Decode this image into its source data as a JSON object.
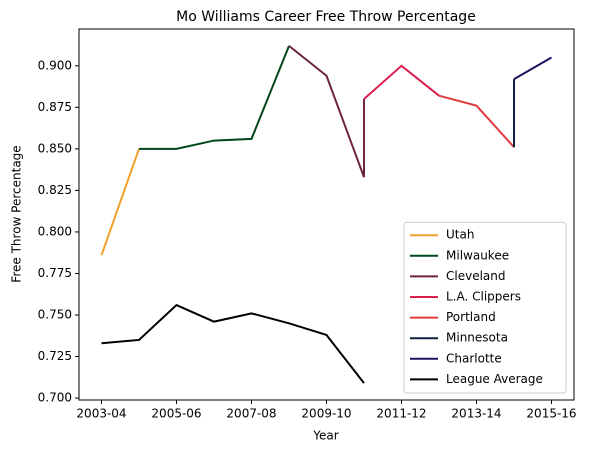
{
  "chart_data": {
    "type": "line",
    "title": "Mo Williams Career Free Throw Percentage",
    "xlabel": "Year",
    "ylabel": "Free Throw Percentage",
    "series": [
      {
        "name": "Utah",
        "color": "#f0a12e",
        "x": [
          2003,
          2004
        ],
        "values": [
          0.786,
          0.85
        ]
      },
      {
        "name": "Milwaukee",
        "color": "#00471b",
        "x": [
          2004,
          2005,
          2006,
          2007,
          2008
        ],
        "values": [
          0.85,
          0.85,
          0.855,
          0.856,
          0.912
        ]
      },
      {
        "name": "Cleveland",
        "color": "#6f263d",
        "x": [
          2008,
          2009,
          2010,
          2010
        ],
        "values": [
          0.912,
          0.894,
          0.833,
          0.88
        ]
      },
      {
        "name": "L.A. Clippers",
        "color": "#dc1f4f",
        "x": [
          2010,
          2011,
          2012
        ],
        "values": [
          0.88,
          0.9,
          0.882
        ]
      },
      {
        "name": "Portland",
        "color": "#e03a3e",
        "x": [
          2012,
          2013,
          2014
        ],
        "values": [
          0.882,
          0.876,
          0.851
        ]
      },
      {
        "name": "Minnesota",
        "color": "#0c2340",
        "x": [
          2014,
          2014
        ],
        "values": [
          0.851,
          0.892
        ]
      },
      {
        "name": "Charlotte",
        "color": "#1d1160",
        "x": [
          2014,
          2015
        ],
        "values": [
          0.892,
          0.905
        ]
      },
      {
        "name": "League Average",
        "color": "#000000",
        "x": [
          2003,
          2004,
          2005,
          2006,
          2007,
          2008,
          2009,
          2010
        ],
        "values": [
          0.733,
          0.735,
          0.756,
          0.746,
          0.751,
          0.745,
          0.738,
          0.709
        ]
      }
    ],
    "xlim": [
      2002.4,
      2015.6
    ],
    "xticks": [
      {
        "value": 2003,
        "label": "2003-04"
      },
      {
        "value": 2005,
        "label": "2005-06"
      },
      {
        "value": 2007,
        "label": "2007-08"
      },
      {
        "value": 2009,
        "label": "2009-10"
      },
      {
        "value": 2011,
        "label": "2011-12"
      },
      {
        "value": 2013,
        "label": "2013-14"
      },
      {
        "value": 2015,
        "label": "2015-16"
      }
    ],
    "ylim": [
      0.69885,
      0.92215
    ],
    "yticks": [
      {
        "value": 0.7,
        "label": "0.700"
      },
      {
        "value": 0.725,
        "label": "0.725"
      },
      {
        "value": 0.75,
        "label": "0.750"
      },
      {
        "value": 0.775,
        "label": "0.775"
      },
      {
        "value": 0.8,
        "label": "0.800"
      },
      {
        "value": 0.825,
        "label": "0.825"
      },
      {
        "value": 0.85,
        "label": "0.850"
      },
      {
        "value": 0.875,
        "label": "0.875"
      },
      {
        "value": 0.9,
        "label": "0.900"
      }
    ],
    "legend": "lower right"
  }
}
